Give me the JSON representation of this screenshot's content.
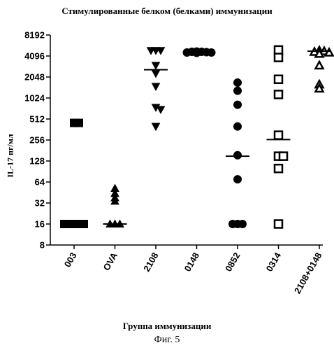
{
  "chart_data": {
    "type": "scatter",
    "title": "Стимулированные белком (белками) иммунизации",
    "xlabel": "Группа иммунизации",
    "ylabel": "IL-17 пг/мл",
    "y_scale": "log2",
    "ylim": [
      8,
      8192
    ],
    "y_ticks": [
      "8",
      "16",
      "32",
      "64",
      "128",
      "256",
      "512",
      "1024",
      "2048",
      "4096",
      "8192"
    ],
    "categories": [
      "003",
      "OVA",
      "2108",
      "0148",
      "0852",
      "0314",
      "2108+0148"
    ],
    "groups": [
      {
        "category": "003",
        "marker": "square-filled",
        "points": [
          450,
          450,
          16,
          16,
          16,
          16,
          16
        ],
        "median": 16
      },
      {
        "category": "OVA",
        "marker": "triangle-up-filled",
        "points": [
          52,
          44,
          38,
          34,
          16,
          16,
          16
        ],
        "median": 16
      },
      {
        "category": "2108",
        "marker": "triangle-down-filled",
        "points": [
          4900,
          4900,
          4900,
          3000,
          2300,
          1500,
          750,
          700,
          400
        ],
        "median": 2600
      },
      {
        "category": "0148",
        "marker": "circle-filled",
        "points": [
          4750,
          4700,
          4700,
          4650,
          4600,
          4600,
          4550
        ],
        "median": 4700
      },
      {
        "category": "0852",
        "marker": "circle-filled",
        "points": [
          1700,
          1300,
          820,
          400,
          155,
          70,
          16,
          16,
          16
        ],
        "median": 150
      },
      {
        "category": "0314",
        "marker": "square-open",
        "points": [
          5000,
          3900,
          1900,
          1150,
          300,
          150,
          150,
          100,
          16
        ],
        "median": 260
      },
      {
        "category": "2108+0148",
        "marker": "triangle-up-open",
        "points": [
          4900,
          4800,
          4700,
          4600,
          4400,
          3000,
          1600,
          1400
        ],
        "median": 4800
      }
    ]
  },
  "caption": "Фиг. 5"
}
